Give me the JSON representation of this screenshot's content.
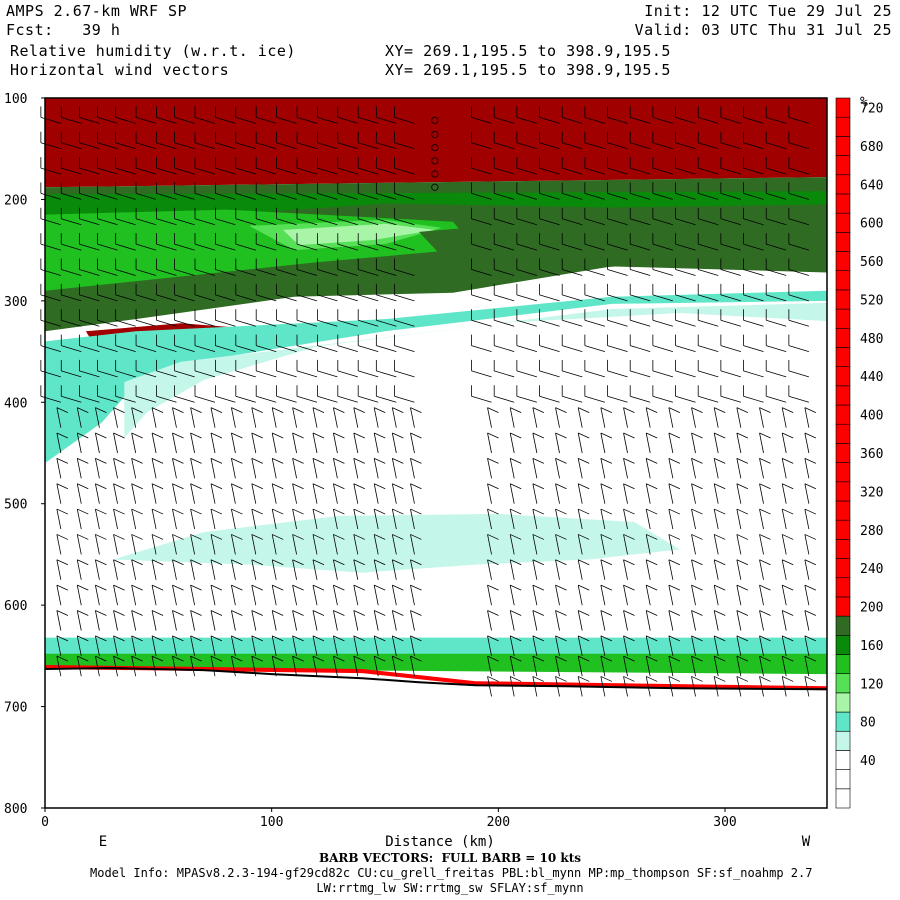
{
  "header": {
    "model": "AMPS 2.67-km WRF SP",
    "fcst": "Fcst:   39 h",
    "field1": "Relative humidity (w.r.t. ice)",
    "field2": "Horizontal wind vectors",
    "init": "Init: 12 UTC Tue 29 Jul 25",
    "valid": "Valid: 03 UTC Thu 31 Jul 25",
    "xy1": "XY= 269.1,195.5 to 398.9,195.5",
    "xy2": "XY= 269.1,195.5 to 398.9,195.5"
  },
  "footer": {
    "barb": "BARB VECTORS:  FULL BARB = 10 kts",
    "model_info": "Model Info: MPASv8.2.3-194-gf29cd82c CU:cu_grell_freitas PBL:bl_mynn MP:mp_thompson SF:sf_noahmp 2.7",
    "model_info2": "LW:rrtmg_lw SW:rrtmg_sw SFLAY:sf_mynn"
  },
  "colors": {
    "red": "#ff0000",
    "darkred": "#a00000",
    "darkgreen": "#2f6b22",
    "green1": "#0a8a0a",
    "green2": "#1fc01f",
    "green3": "#55e055",
    "lightgreen": "#a8f5a8",
    "teal": "#5fe6c8",
    "lightteal": "#c4f7ea",
    "terrain": "#000000"
  },
  "chart_data": {
    "type": "heatmap",
    "title": "Relative humidity (w.r.t. ice)",
    "xlabel": "Distance (km)",
    "ylabel": "",
    "xlim": [
      0,
      345
    ],
    "ylim": [
      100,
      800
    ],
    "y_inverted": true,
    "x_ticks": [
      0,
      100,
      200,
      300
    ],
    "y_ticks": [
      100,
      200,
      300,
      400,
      500,
      600,
      700,
      800
    ],
    "x_end_labels": {
      "left": "E",
      "right": "W"
    },
    "colorbar": {
      "unit": "%",
      "labels": [
        40,
        80,
        120,
        160,
        200,
        240,
        280,
        320,
        360,
        400,
        440,
        480,
        520,
        560,
        600,
        640,
        680,
        720
      ],
      "bin_colors": [
        "#ffffff",
        "#ffffff",
        "#ffffff",
        "#c4f7ea",
        "#5fe6c8",
        "#a8f5a8",
        "#55e055",
        "#1fc01f",
        "#0a8a0a",
        "#2f6b22",
        "#ff0000",
        "#ff0000",
        "#ff0000",
        "#ff0000",
        "#ff0000",
        "#ff0000",
        "#ff0000",
        "#ff0000",
        "#ff0000",
        "#ff0000",
        "#ff0000",
        "#ff0000",
        "#ff0000",
        "#ff0000",
        "#ff0000",
        "#ff0000",
        "#ff0000",
        "#ff0000",
        "#ff0000",
        "#ff0000",
        "#ff0000",
        "#ff0000",
        "#ff0000",
        "#ff0000",
        "#ff0000",
        "#ff0000",
        "#ff0000"
      ]
    },
    "regions": [
      {
        "color": "darkred",
        "pts": [
          [
            0,
            100
          ],
          [
            345,
            100
          ],
          [
            345,
            178
          ],
          [
            0,
            188
          ]
        ]
      },
      {
        "color": "darkgreen",
        "pts": [
          [
            0,
            188
          ],
          [
            345,
            178
          ],
          [
            345,
            272
          ],
          [
            250,
            266
          ],
          [
            180,
            292
          ],
          [
            110,
            296
          ],
          [
            40,
            318
          ],
          [
            0,
            330
          ]
        ]
      },
      {
        "color": "green1",
        "pts": [
          [
            0,
            195
          ],
          [
            345,
            192
          ],
          [
            345,
            205
          ],
          [
            250,
            208
          ],
          [
            150,
            204
          ],
          [
            60,
            218
          ],
          [
            0,
            222
          ]
        ]
      },
      {
        "color": "green2",
        "pts": [
          [
            0,
            215
          ],
          [
            80,
            210
          ],
          [
            180,
            222
          ],
          [
            190,
            248
          ],
          [
            120,
            262
          ],
          [
            60,
            276
          ],
          [
            0,
            290
          ]
        ]
      },
      {
        "color": "green3",
        "pts": [
          [
            90,
            226
          ],
          [
            150,
            220
          ],
          [
            175,
            228
          ],
          [
            150,
            244
          ],
          [
            110,
            250
          ]
        ]
      },
      {
        "color": "lightgreen",
        "pts": [
          [
            105,
            230
          ],
          [
            150,
            224
          ],
          [
            172,
            230
          ],
          [
            145,
            240
          ],
          [
            112,
            245
          ]
        ]
      },
      {
        "color": "darkgreen",
        "pts": [
          [
            165,
            232
          ],
          [
            240,
            218
          ],
          [
            260,
            230
          ],
          [
            275,
            262
          ],
          [
            230,
            270
          ],
          [
            190,
            274
          ],
          [
            175,
            256
          ]
        ]
      },
      {
        "color": "darkred",
        "pts": [
          [
            18,
            330
          ],
          [
            60,
            322
          ],
          [
            95,
            328
          ],
          [
            85,
            345
          ],
          [
            45,
            350
          ],
          [
            25,
            355
          ]
        ]
      },
      {
        "color": "teal",
        "pts": [
          [
            0,
            340
          ],
          [
            40,
            330
          ],
          [
            150,
            318
          ],
          [
            250,
            296
          ],
          [
            345,
            290
          ],
          [
            345,
            300
          ],
          [
            250,
            303
          ],
          [
            150,
            330
          ],
          [
            80,
            355
          ],
          [
            40,
            382
          ],
          [
            25,
            420
          ],
          [
            0,
            460
          ]
        ]
      },
      {
        "color": "lightteal",
        "pts": [
          [
            35,
            380
          ],
          [
            60,
            360
          ],
          [
            150,
            336
          ],
          [
            250,
            308
          ],
          [
            345,
            302
          ],
          [
            345,
            320
          ],
          [
            280,
            312
          ],
          [
            200,
            322
          ],
          [
            120,
            345
          ],
          [
            70,
            378
          ],
          [
            45,
            410
          ],
          [
            35,
            435
          ]
        ]
      },
      {
        "color": "lightteal",
        "pts": [
          [
            30,
            555
          ],
          [
            70,
            528
          ],
          [
            130,
            512
          ],
          [
            200,
            510
          ],
          [
            260,
            518
          ],
          [
            280,
            545
          ],
          [
            240,
            555
          ],
          [
            190,
            560
          ],
          [
            140,
            568
          ],
          [
            90,
            560
          ]
        ]
      },
      {
        "color": "teal",
        "pts": [
          [
            0,
            632
          ],
          [
            345,
            632
          ],
          [
            345,
            652
          ],
          [
            0,
            652
          ]
        ]
      },
      {
        "color": "green2",
        "pts": [
          [
            0,
            648
          ],
          [
            345,
            648
          ],
          [
            345,
            668
          ],
          [
            0,
            662
          ]
        ]
      },
      {
        "color": "red",
        "pts": [
          [
            0,
            659
          ],
          [
            140,
            663
          ],
          [
            190,
            675
          ],
          [
            345,
            680
          ],
          [
            345,
            684
          ],
          [
            190,
            679
          ],
          [
            140,
            667
          ],
          [
            0,
            663
          ]
        ]
      }
    ],
    "terrain": [
      [
        0,
        663
      ],
      [
        30,
        662
      ],
      [
        70,
        664
      ],
      [
        100,
        668
      ],
      [
        140,
        672
      ],
      [
        165,
        676
      ],
      [
        190,
        679
      ],
      [
        230,
        680
      ],
      [
        280,
        682
      ],
      [
        345,
        683
      ]
    ],
    "calm_markers": [
      {
        "x": 172,
        "p": [
          122,
          136,
          149,
          162,
          175,
          188
        ]
      }
    ],
    "barb_columns_x": [
      7,
      16,
      24,
      32,
      40,
      49,
      58,
      66,
      75,
      84,
      93,
      102,
      111,
      120,
      129,
      138,
      147,
      155,
      163,
      197,
      207,
      217,
      227,
      237,
      247,
      257,
      267,
      277,
      287,
      297,
      307,
      317,
      327,
      337
    ],
    "barb_levels": [
      125,
      150,
      175,
      200,
      225,
      250,
      275,
      300,
      325,
      350,
      375,
      400,
      425,
      450,
      475,
      500,
      525,
      550,
      575,
      600,
      625,
      650,
      670,
      690
    ],
    "wind_regime_note": "upper levels westerly, lower levels northerly; full barb = 10 kts"
  }
}
